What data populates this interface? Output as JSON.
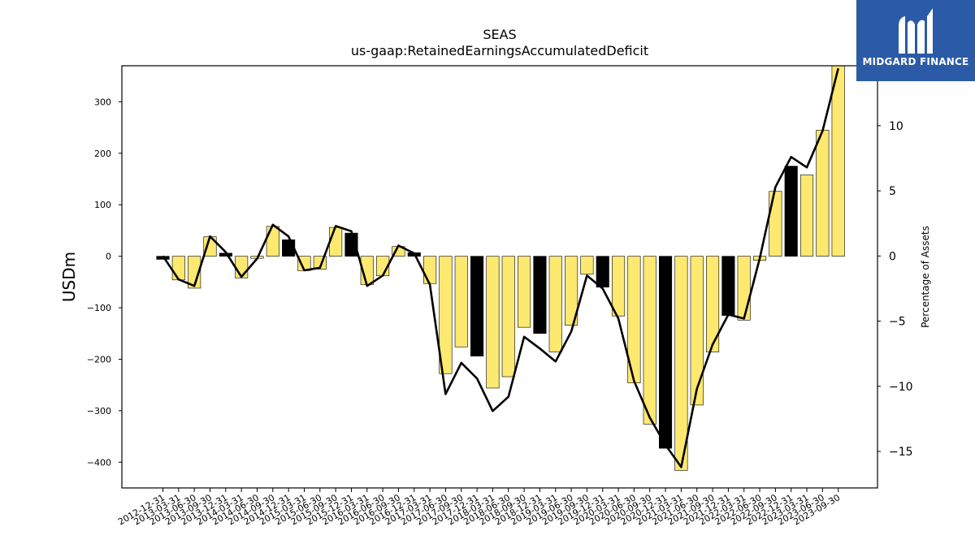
{
  "chart_data": {
    "type": "bar",
    "title": "SEAS",
    "subtitle": "us-gaap:RetainedEarningsAccumulatedDeficit",
    "ylabel": "USDm",
    "y2label": "Percentage of Assets",
    "ylim": [
      -450,
      370
    ],
    "y2lim": [
      -17.8,
      14.6
    ],
    "yticks": [
      -400,
      -300,
      -200,
      -100,
      0,
      100,
      200,
      300
    ],
    "y2ticks": [
      -15,
      -10,
      -5,
      0,
      5,
      10
    ],
    "categories": [
      "2012-12-31",
      "2013-03-31",
      "2013-06-30",
      "2013-09-30",
      "2013-12-31",
      "2014-03-31",
      "2014-06-30",
      "2014-09-30",
      "2014-12-31",
      "2015-03-31",
      "2015-06-30",
      "2015-09-30",
      "2015-12-31",
      "2016-03-31",
      "2016-06-30",
      "2016-09-30",
      "2016-12-31",
      "2017-03-31",
      "2017-06-30",
      "2017-09-30",
      "2017-12-31",
      "2018-03-31",
      "2018-06-30",
      "2018-09-30",
      "2018-12-31",
      "2019-03-31",
      "2019-06-30",
      "2019-09-30",
      "2019-12-31",
      "2020-03-31",
      "2020-06-30",
      "2020-09-30",
      "2020-12-31",
      "2021-03-31",
      "2021-06-30",
      "2021-09-30",
      "2021-12-31",
      "2022-03-31",
      "2022-06-30",
      "2022-09-30",
      "2022-12-31",
      "2023-03-31",
      "2023-06-30",
      "2023-09-30"
    ],
    "series": [
      {
        "kind": "bar",
        "values": [
          -6,
          -46,
          -62,
          38,
          6,
          -42,
          -4,
          58,
          32,
          -28,
          -25,
          56,
          45,
          -55,
          -38,
          19,
          7,
          -53,
          -228,
          -176,
          -194,
          -256,
          -234,
          -138,
          -150,
          -186,
          -134,
          -35,
          -60,
          -116,
          -246,
          -326,
          -373,
          -416,
          -289,
          -186,
          -115,
          -124,
          -8,
          126,
          175,
          158,
          245,
          370
        ],
        "highlight": [
          true,
          false,
          false,
          false,
          true,
          false,
          false,
          false,
          true,
          false,
          false,
          false,
          true,
          false,
          false,
          false,
          true,
          false,
          false,
          false,
          true,
          false,
          false,
          false,
          true,
          false,
          false,
          false,
          true,
          false,
          false,
          false,
          true,
          false,
          false,
          false,
          true,
          false,
          false,
          false,
          true,
          false,
          false,
          false
        ]
      },
      {
        "kind": "line",
        "axis": "right",
        "values": [
          0,
          -1.8,
          -2.3,
          1.5,
          0.3,
          -1.6,
          -0.2,
          2.4,
          1.5,
          -1.1,
          -0.9,
          2.3,
          1.9,
          -2.3,
          -1.5,
          0.8,
          0.2,
          -2.2,
          -10.6,
          -8.2,
          -9.4,
          -11.9,
          -10.8,
          -6.2,
          -7.1,
          -8.1,
          -5.8,
          -1.5,
          -2.5,
          -4.8,
          -9.6,
          -12.4,
          -14.5,
          -16.2,
          -10.2,
          -6.8,
          -4.5,
          -4.8,
          -0.2,
          5.3,
          7.6,
          6.8,
          9.6,
          14.4
        ]
      }
    ],
    "colors": {
      "bar": "#fde870",
      "bar_highlight": "#000000",
      "line": "#000000"
    },
    "grid": false
  },
  "logo": {
    "text": "MIDGARD FINANCE",
    "background": "#2b5aa6"
  }
}
